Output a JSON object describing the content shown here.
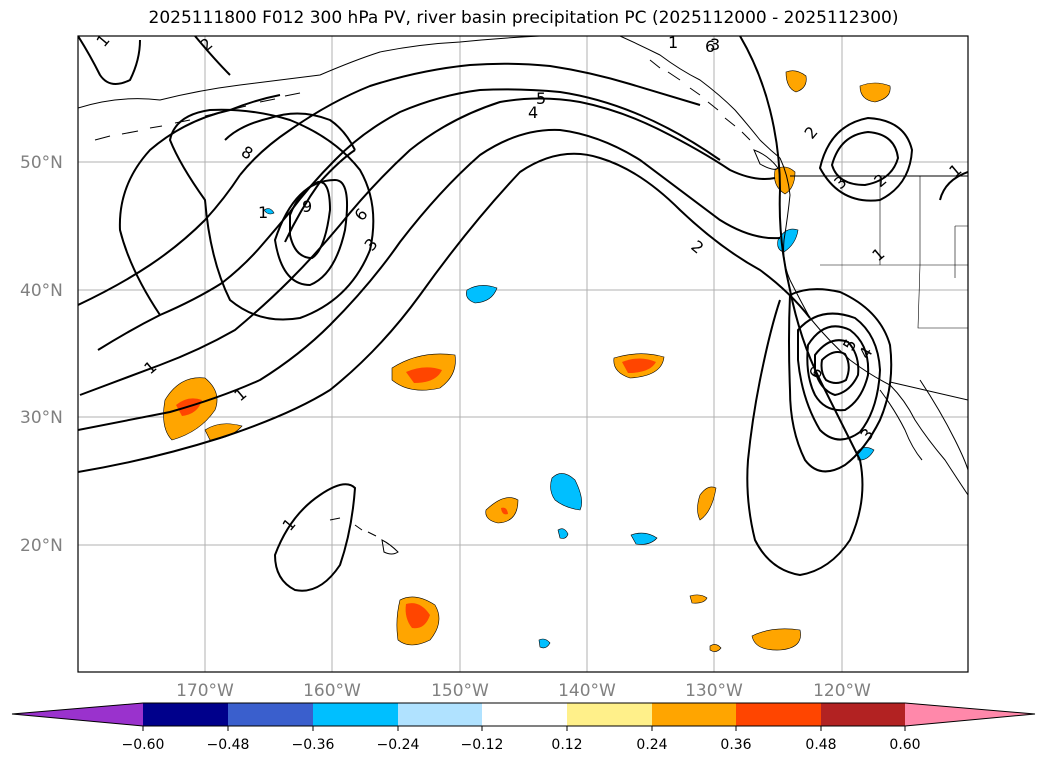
{
  "title": "2025111800 F012 300 hPa PV, river basin precipitation PC (2025112000 - 2025112300)",
  "lat_labels": [
    "50°N",
    "40°N",
    "30°N",
    "20°N"
  ],
  "lon_labels": [
    "170°W",
    "160°W",
    "150°W",
    "140°W",
    "130°W",
    "120°W"
  ],
  "colorbar": {
    "ticks": [
      "−0.60",
      "−0.48",
      "−0.36",
      "−0.24",
      "−0.12",
      "0.12",
      "0.24",
      "0.36",
      "0.48",
      "0.60"
    ],
    "colors": [
      "#9a32cd",
      "#00008b",
      "#3a5fcd",
      "#00bfff",
      "#b0e2ff",
      "#ffffff",
      "#fff08a",
      "#ffa500",
      "#ff4500",
      "#b22222",
      "#ff88aa"
    ]
  },
  "contour_labels": [
    "1",
    "1",
    "1",
    "1",
    "1",
    "1",
    "1",
    "2",
    "2",
    "2",
    "3",
    "3",
    "3",
    "4",
    "5",
    "5",
    "6",
    "6",
    "8",
    "9",
    "1",
    "3",
    "4",
    "6",
    "2"
  ]
}
